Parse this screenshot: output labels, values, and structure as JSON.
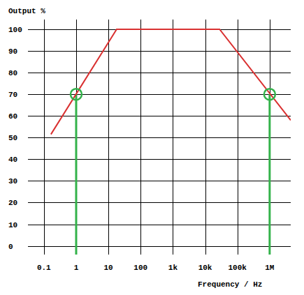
{
  "chart_data": {
    "type": "line",
    "y_label": "Output %",
    "x_label": "Frequency / Hz",
    "log": "x",
    "grid": true,
    "x": [
      0.165,
      18,
      28000,
      4500000
    ],
    "values": [
      51.5,
      100,
      100,
      58
    ],
    "color": "#d93030",
    "highlights": {
      "x": [
        1,
        1000000
      ],
      "y": [
        70,
        70
      ],
      "color": "#33b24a"
    },
    "xlim": [
      0.032,
      4500000
    ],
    "ylim": [
      -4,
      104.5
    ],
    "xticks": [
      0.1,
      1,
      10,
      100,
      {
        "value": 1000,
        "label": "1k"
      },
      {
        "value": 10000,
        "label": "10k"
      },
      {
        "value": 100000,
        "label": "100k"
      },
      {
        "value": 1000000,
        "label": "1M"
      }
    ],
    "yticks": [
      0,
      10,
      20,
      30,
      40,
      50,
      60,
      70,
      80,
      90,
      100
    ]
  }
}
